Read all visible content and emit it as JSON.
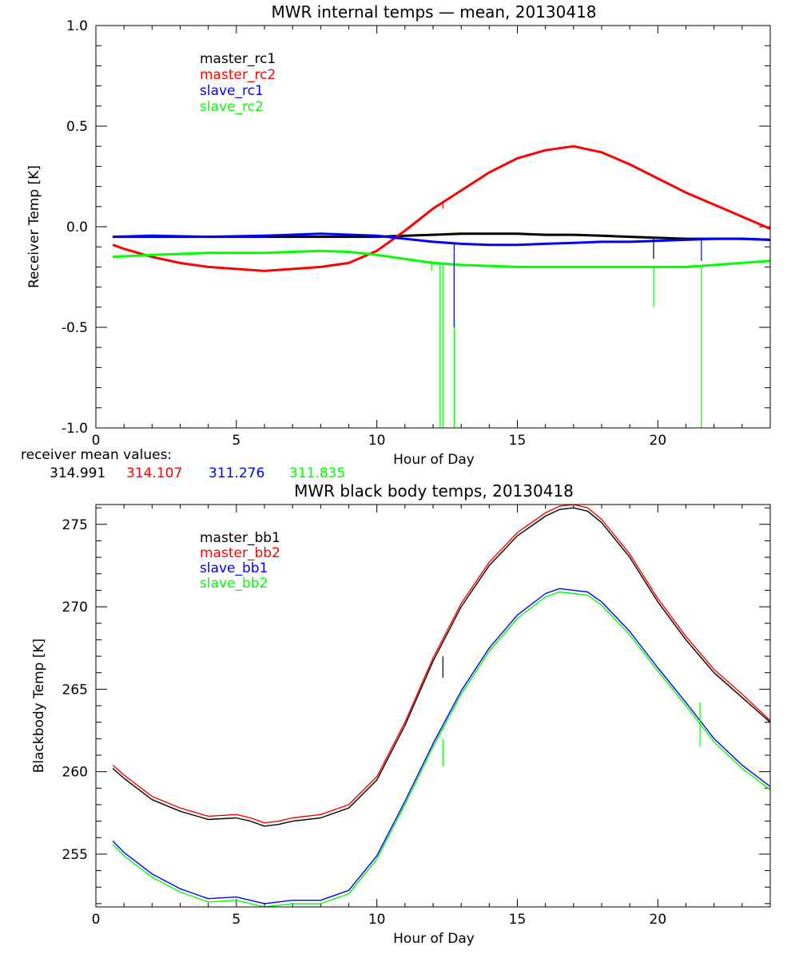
{
  "colors": {
    "black": "#000000",
    "red": "#ff0000",
    "blue": "#0000ff",
    "green": "#00ff00"
  },
  "receiver_means": {
    "label": "receiver mean values:",
    "values": [
      {
        "text": "314.991",
        "color": "#000000"
      },
      {
        "text": "314.107",
        "color": "#ff0000"
      },
      {
        "text": "311.276",
        "color": "#0000ff"
      },
      {
        "text": "311.835",
        "color": "#00ff00"
      }
    ]
  },
  "chart_data": [
    {
      "type": "line",
      "title": "MWR internal temps — mean, 20130418",
      "xlabel": "Hour of Day",
      "ylabel": "Receiver Temp [K]",
      "xlim": [
        0,
        24
      ],
      "ylim": [
        -1.0,
        1.0
      ],
      "xticks": [
        0,
        5,
        10,
        15,
        20
      ],
      "xtick_labels": [
        "0",
        "5",
        "10",
        "15",
        "20"
      ],
      "yticks": [
        -1.0,
        -0.5,
        0.0,
        0.5,
        1.0
      ],
      "ytick_labels": [
        "-1.0",
        "-0.5",
        "0.0",
        "0.5",
        "1.0"
      ],
      "legend_position": "top-left",
      "series": [
        {
          "name": "master_rc1",
          "color": "#000000",
          "x": [
            0.6,
            2,
            4,
            6,
            8,
            10,
            11,
            12,
            13,
            14,
            15,
            16,
            17,
            18,
            19,
            20,
            21,
            22,
            23,
            24
          ],
          "y": [
            -0.05,
            -0.05,
            -0.05,
            -0.05,
            -0.05,
            -0.05,
            -0.045,
            -0.04,
            -0.035,
            -0.035,
            -0.035,
            -0.04,
            -0.04,
            -0.045,
            -0.05,
            -0.055,
            -0.06,
            -0.06,
            -0.06,
            -0.065
          ]
        },
        {
          "name": "master_rc2",
          "color": "#ff0000",
          "x": [
            0.6,
            1,
            2,
            3,
            4,
            5,
            6,
            7,
            8,
            9,
            10,
            11,
            12,
            13,
            14,
            15,
            16,
            17,
            18,
            19,
            20,
            21,
            22,
            23,
            24
          ],
          "y": [
            -0.09,
            -0.11,
            -0.15,
            -0.18,
            -0.2,
            -0.21,
            -0.22,
            -0.21,
            -0.2,
            -0.18,
            -0.12,
            -0.02,
            0.09,
            0.18,
            0.27,
            0.34,
            0.38,
            0.4,
            0.37,
            0.31,
            0.24,
            0.17,
            0.11,
            0.05,
            -0.01
          ]
        },
        {
          "name": "slave_rc1",
          "color": "#0000ff",
          "x": [
            0.6,
            2,
            4,
            6,
            8,
            10,
            11,
            12,
            13,
            14,
            15,
            16,
            17,
            18,
            19,
            20,
            21,
            22,
            23,
            24
          ],
          "y": [
            -0.05,
            -0.045,
            -0.05,
            -0.045,
            -0.035,
            -0.045,
            -0.06,
            -0.075,
            -0.085,
            -0.09,
            -0.09,
            -0.085,
            -0.08,
            -0.075,
            -0.075,
            -0.07,
            -0.065,
            -0.06,
            -0.06,
            -0.065
          ]
        },
        {
          "name": "slave_rc2",
          "color": "#00ff00",
          "x": [
            0.6,
            2,
            4,
            6,
            8,
            9,
            10,
            11,
            12,
            13,
            14,
            15,
            16,
            17,
            18,
            19,
            20,
            21,
            22,
            23,
            24
          ],
          "y": [
            -0.15,
            -0.14,
            -0.13,
            -0.13,
            -0.12,
            -0.125,
            -0.14,
            -0.16,
            -0.18,
            -0.19,
            -0.195,
            -0.2,
            -0.2,
            -0.2,
            -0.2,
            -0.2,
            -0.2,
            -0.2,
            -0.19,
            -0.18,
            -0.17
          ]
        }
      ],
      "spikes": [
        {
          "series": "master_rc2",
          "x": 12.35,
          "from": 0.09,
          "to": 0.12
        },
        {
          "series": "slave_rc2",
          "x": 12.25,
          "from": -0.18,
          "to": -1.0
        },
        {
          "series": "slave_rc2",
          "x": 12.35,
          "from": -0.18,
          "to": -1.0
        },
        {
          "series": "slave_rc2",
          "x": 12.75,
          "from": -0.19,
          "to": -1.0
        },
        {
          "series": "slave_rc1",
          "x": 12.75,
          "from": -0.085,
          "to": -0.5
        },
        {
          "series": "slave_rc2",
          "x": 11.95,
          "from": -0.17,
          "to": -0.22
        },
        {
          "series": "master_rc1",
          "x": 19.85,
          "from": -0.06,
          "to": -0.16
        },
        {
          "series": "slave_rc2",
          "x": 19.85,
          "from": -0.2,
          "to": -0.4
        },
        {
          "series": "slave_rc1",
          "x": 21.55,
          "from": -0.065,
          "to": -0.17
        },
        {
          "series": "slave_rc2",
          "x": 21.55,
          "from": -0.2,
          "to": -1.0
        }
      ]
    },
    {
      "type": "line",
      "title": "MWR black body temps, 20130418",
      "xlabel": "Hour of Day",
      "ylabel": "Blackbody Temp [K]",
      "xlim": [
        0,
        24
      ],
      "ylim": [
        251.8,
        276.2
      ],
      "xticks": [
        0,
        5,
        10,
        15,
        20
      ],
      "xtick_labels": [
        "0",
        "5",
        "10",
        "15",
        "20"
      ],
      "yticks": [
        255,
        260,
        265,
        270,
        275
      ],
      "ytick_labels": [
        "255",
        "260",
        "265",
        "270",
        "275"
      ],
      "legend_position": "top-left",
      "series": [
        {
          "name": "master_bb1",
          "color": "#000000",
          "x": [
            0.6,
            1,
            2,
            3,
            4,
            5,
            5.5,
            6,
            6.5,
            7,
            8,
            9,
            10,
            11,
            12,
            13,
            14,
            15,
            16,
            16.5,
            17,
            17.5,
            18,
            19,
            20,
            21,
            22,
            23,
            24
          ],
          "y": [
            260.2,
            259.6,
            258.3,
            257.6,
            257.1,
            257.2,
            257.0,
            256.7,
            256.8,
            257.0,
            257.2,
            257.8,
            259.5,
            262.8,
            266.7,
            270.0,
            272.5,
            274.3,
            275.5,
            275.9,
            276.0,
            275.8,
            275.1,
            273.0,
            270.3,
            268.0,
            266.0,
            264.5,
            263.0
          ]
        },
        {
          "name": "master_bb2",
          "color": "#ff0000",
          "x": [
            0.6,
            1,
            2,
            3,
            4,
            5,
            5.5,
            6,
            6.5,
            7,
            8,
            9,
            10,
            11,
            12,
            13,
            14,
            15,
            16,
            16.5,
            17,
            17.5,
            18,
            19,
            20,
            21,
            22,
            23,
            24
          ],
          "y": [
            260.4,
            259.8,
            258.5,
            257.8,
            257.3,
            257.4,
            257.2,
            256.9,
            257.0,
            257.2,
            257.4,
            258.0,
            259.7,
            263.0,
            266.9,
            270.2,
            272.7,
            274.5,
            275.7,
            276.1,
            276.2,
            276.0,
            275.3,
            273.2,
            270.5,
            268.2,
            266.2,
            264.7,
            263.1
          ]
        },
        {
          "name": "slave_bb1",
          "color": "#0000ff",
          "x": [
            0.6,
            1,
            2,
            3,
            4,
            5,
            6,
            7,
            8,
            9,
            10,
            11,
            12,
            13,
            14,
            15,
            16,
            16.5,
            17,
            17.5,
            18,
            19,
            20,
            21,
            22,
            23,
            24
          ],
          "y": [
            255.8,
            255.1,
            253.8,
            252.9,
            252.3,
            252.4,
            252.0,
            252.2,
            252.2,
            252.8,
            254.9,
            258.2,
            261.7,
            264.9,
            267.5,
            269.5,
            270.8,
            271.1,
            271.0,
            270.9,
            270.3,
            268.5,
            266.3,
            264.2,
            262.0,
            260.4,
            259.1
          ]
        },
        {
          "name": "slave_bb2",
          "color": "#00ff00",
          "x": [
            0.6,
            1,
            2,
            3,
            4,
            5,
            6,
            7,
            8,
            9,
            10,
            11,
            12,
            13,
            14,
            15,
            16,
            16.5,
            17,
            17.5,
            18,
            19,
            20,
            21,
            22,
            23,
            24
          ],
          "y": [
            255.6,
            254.9,
            253.6,
            252.7,
            252.1,
            252.2,
            251.8,
            252.0,
            252.0,
            252.6,
            254.7,
            258.0,
            261.5,
            264.7,
            267.3,
            269.3,
            270.6,
            270.9,
            270.8,
            270.7,
            270.1,
            268.3,
            266.1,
            264.0,
            261.8,
            260.2,
            258.9
          ]
        }
      ],
      "spikes": [
        {
          "series": "master_bb1",
          "x": 12.35,
          "from": 267.0,
          "to": 265.7
        },
        {
          "series": "slave_bb2",
          "x": 12.35,
          "from": 262.0,
          "to": 260.3
        },
        {
          "series": "slave_bb2",
          "x": 21.5,
          "from": 264.2,
          "to": 261.5
        }
      ]
    }
  ]
}
